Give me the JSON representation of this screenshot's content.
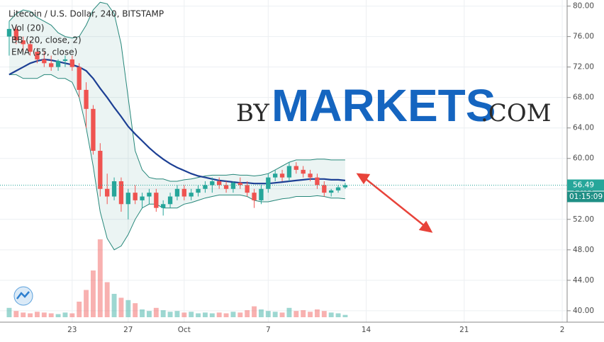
{
  "chart_data": {
    "type": "candlestick",
    "title": "Litecoin / U.S. Dollar, 240, BITSTAMP",
    "watermark": {
      "by": "BY",
      "brand": "MARKETS",
      "suffix": ".COM"
    },
    "categories": [
      null,
      null,
      null,
      null,
      null,
      null,
      null,
      null,
      null,
      "23",
      null,
      null,
      null,
      null,
      null,
      null,
      null,
      "27",
      null,
      null,
      null,
      null,
      null,
      null,
      null,
      "Oct",
      null,
      null,
      null,
      null,
      null,
      null,
      null,
      null,
      null,
      null,
      null,
      "7",
      null,
      null,
      null,
      null,
      null,
      null,
      null,
      null,
      null,
      null,
      null,
      null,
      null,
      "14",
      null,
      null,
      null,
      null,
      null,
      null,
      null,
      null,
      null,
      null,
      null,
      null,
      null,
      "21",
      null,
      null,
      null,
      null,
      null,
      null,
      null,
      null,
      null,
      null,
      null,
      null,
      null,
      "2"
    ],
    "open": [
      76,
      77,
      75.5,
      75,
      74,
      73,
      72.5,
      72,
      72.8,
      73,
      72,
      69,
      66.5,
      61,
      56,
      55,
      57,
      54,
      55.5,
      54.5,
      55,
      55.5,
      53.5,
      54,
      55,
      56,
      55,
      55.5,
      56,
      56.5,
      57,
      56.5,
      56,
      56.8,
      56.5,
      55.5,
      54.5,
      56,
      57.5,
      58,
      57.5,
      59,
      58.5,
      58,
      57.5,
      56.5,
      55.5,
      55.8,
      56.2,
      null,
      null,
      null,
      null,
      null,
      null,
      null,
      null,
      null,
      null,
      null,
      null,
      null,
      null,
      null,
      null,
      null,
      null,
      null,
      null,
      null,
      null,
      null,
      null,
      null,
      null,
      null,
      null,
      null,
      null,
      null
    ],
    "high": [
      78,
      77.5,
      76,
      75.5,
      74.5,
      74,
      73.5,
      73,
      73.5,
      73.5,
      72.5,
      70,
      67,
      62,
      58,
      57.5,
      57.5,
      56,
      56.5,
      55.5,
      56,
      56,
      54.5,
      55.5,
      56.5,
      56.5,
      56,
      56.5,
      57,
      57.5,
      57.5,
      57,
      57,
      57.5,
      57,
      56,
      56.5,
      58,
      58.5,
      58.5,
      59.5,
      59.5,
      59,
      58.5,
      58,
      57,
      56,
      56.5,
      56.8,
      null,
      null,
      null,
      null,
      null,
      null,
      null,
      null,
      null,
      null,
      null,
      null,
      null,
      null,
      null,
      null,
      null,
      null,
      null,
      null,
      null,
      null,
      null,
      null,
      null,
      null,
      null,
      null,
      null,
      null,
      null
    ],
    "low": [
      73.5,
      75,
      74,
      73.5,
      72.5,
      72,
      71.5,
      71.5,
      72,
      71.5,
      68,
      64,
      60.5,
      55,
      54,
      54.5,
      53,
      52,
      54,
      53.5,
      54,
      53,
      52.5,
      53.5,
      54.5,
      54.5,
      54.5,
      55,
      55.5,
      55.5,
      56,
      55.5,
      55.5,
      56,
      55,
      53.5,
      54,
      55.5,
      57,
      57,
      57,
      58,
      57.5,
      57,
      56,
      55,
      55,
      55.5,
      56,
      null,
      null,
      null,
      null,
      null,
      null,
      null,
      null,
      null,
      null,
      null,
      null,
      null,
      null,
      null,
      null,
      null,
      null,
      null,
      null,
      null,
      null,
      null,
      null,
      null,
      null,
      null,
      null,
      null,
      null,
      null
    ],
    "close": [
      77,
      75.5,
      75,
      74,
      73,
      72.5,
      72,
      72.8,
      73,
      72,
      69,
      66.5,
      61,
      56,
      55,
      57,
      54,
      55.5,
      54.5,
      55,
      55.5,
      53.5,
      54,
      55,
      56,
      55,
      55.5,
      56,
      56.5,
      57,
      56.5,
      56,
      56.8,
      56.5,
      55.5,
      54.5,
      56,
      57.5,
      58,
      57.5,
      59,
      58.5,
      58,
      57.5,
      56.5,
      55.5,
      55.8,
      56.2,
      56.49,
      null,
      null,
      null,
      null,
      null,
      null,
      null,
      null,
      null,
      null,
      null,
      null,
      null,
      null,
      null,
      null,
      null,
      null,
      null,
      null,
      null,
      null,
      null,
      null,
      null,
      null,
      null,
      null,
      null,
      null,
      null
    ],
    "series": [
      {
        "name": "Vol (20)",
        "values": [
          12,
          8,
          6,
          5,
          7,
          6,
          5,
          4,
          6,
          5,
          20,
          35,
          60,
          100,
          45,
          30,
          25,
          22,
          18,
          10,
          8,
          12,
          9,
          7,
          8,
          6,
          7,
          5,
          6,
          5,
          6,
          5,
          7,
          6,
          9,
          14,
          10,
          8,
          7,
          6,
          12,
          8,
          9,
          7,
          10,
          8,
          6,
          5,
          3,
          null,
          null,
          null,
          null,
          null,
          null,
          null,
          null,
          null,
          null,
          null,
          null,
          null,
          null,
          null,
          null,
          null,
          null,
          null,
          null,
          null,
          null,
          null,
          null,
          null,
          null,
          null,
          null,
          null,
          null,
          null
        ]
      },
      {
        "name": "BB (20, close, 2)",
        "color": "#26877a",
        "upper": [
          78,
          79,
          79.5,
          79.3,
          78.5,
          78,
          77.5,
          76.5,
          76,
          75.8,
          76,
          77.5,
          79.5,
          80.5,
          80.3,
          79,
          75,
          68,
          61,
          58.5,
          57.5,
          57.3,
          57.3,
          57,
          57,
          57.2,
          57.3,
          57.5,
          57.7,
          57.8,
          57.8,
          57.8,
          57.9,
          57.8,
          57.8,
          57.7,
          57.8,
          58,
          58.5,
          59,
          59.5,
          59.8,
          59.8,
          59.8,
          59.9,
          59.9,
          59.8,
          59.8,
          59.8,
          null,
          null,
          null,
          null,
          null,
          null,
          null,
          null,
          null,
          null,
          null,
          null,
          null,
          null,
          null,
          null,
          null,
          null,
          null,
          null,
          null,
          null,
          null,
          null,
          null,
          null,
          null,
          null,
          null,
          null,
          null
        ],
        "lower": [
          71,
          71,
          70.5,
          70.5,
          70.5,
          71,
          71,
          70.5,
          70.5,
          70,
          68,
          64,
          59,
          53,
          49.5,
          48,
          48.5,
          50,
          52,
          53.5,
          54,
          54,
          53.5,
          53.5,
          53.5,
          54,
          54.2,
          54.5,
          54.8,
          55,
          55.2,
          55.2,
          55.2,
          55.2,
          55,
          54.5,
          54.3,
          54.3,
          54.5,
          54.7,
          54.8,
          55,
          55,
          55,
          55.1,
          55,
          54.8,
          54.8,
          54.7,
          null,
          null,
          null,
          null,
          null,
          null,
          null,
          null,
          null,
          null,
          null,
          null,
          null,
          null,
          null,
          null,
          null,
          null,
          null,
          null,
          null,
          null,
          null,
          null,
          null,
          null,
          null,
          null,
          null,
          null,
          null
        ]
      },
      {
        "name": "EMA (55, close)",
        "color": "#1c3f94",
        "values": [
          71,
          71.5,
          72,
          72.5,
          72.8,
          73,
          72.9,
          72.7,
          72.5,
          72.3,
          72,
          71.5,
          70.5,
          69.2,
          68,
          66.7,
          65.5,
          64.2,
          63.2,
          62.3,
          61.4,
          60.6,
          59.9,
          59.3,
          58.8,
          58.4,
          58,
          57.7,
          57.5,
          57.3,
          57.1,
          57,
          56.9,
          56.8,
          56.8,
          56.7,
          56.7,
          56.7,
          56.8,
          56.9,
          57,
          57.1,
          57.2,
          57.3,
          57.3,
          57.3,
          57.2,
          57.2,
          57.1,
          null,
          null,
          null,
          null,
          null,
          null,
          null,
          null,
          null,
          null,
          null,
          null,
          null,
          null,
          null,
          null,
          null,
          null,
          null,
          null,
          null,
          null,
          null,
          null,
          null,
          null,
          null,
          null,
          null,
          null,
          null
        ]
      }
    ],
    "up_color": "#26a69a",
    "down_color": "#ef5350",
    "ylim": [
      38.5,
      80.8
    ],
    "yticks": [
      {
        "value": 40,
        "label": "40.00"
      },
      {
        "value": 44,
        "label": "44.00"
      },
      {
        "value": 48,
        "label": "48.00"
      },
      {
        "value": 52,
        "label": "52.00"
      },
      {
        "value": 56,
        "label": "56.00"
      },
      {
        "value": 60,
        "label": "60.00"
      },
      {
        "value": 64,
        "label": "64.00"
      },
      {
        "value": 68,
        "label": "68.00"
      },
      {
        "value": 72,
        "label": "72.00"
      },
      {
        "value": 76,
        "label": "76.00"
      },
      {
        "value": 80,
        "label": "80.00"
      }
    ],
    "last_price": 56.49,
    "countdown": "01:15:09",
    "grid": true
  }
}
